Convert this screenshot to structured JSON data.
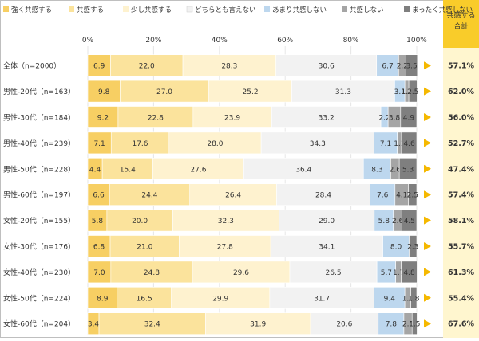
{
  "chart_data": {
    "type": "bar",
    "orientation": "horizontal",
    "stacked": "100%",
    "x_ticks": [
      "0%",
      "20%",
      "40%",
      "60%",
      "80%",
      "100%"
    ],
    "xlim": [
      0,
      100
    ],
    "legend_position": "top",
    "categories": [
      "全体（n=2000）",
      "男性-20代（n=163）",
      "男性-30代（n=184）",
      "男性-40代（n=239）",
      "男性-50代（n=228）",
      "男性-60代（n=197）",
      "女性-20代（n=155）",
      "女性-30代（n=176）",
      "女性-40代（n=230）",
      "女性-50代（n=224）",
      "女性-60代（n=204）"
    ],
    "series": [
      {
        "name": "強く共感する",
        "color": "#f7cf63",
        "values": [
          6.9,
          9.8,
          9.2,
          7.1,
          4.4,
          6.6,
          5.8,
          6.8,
          7.0,
          8.9,
          3.4
        ]
      },
      {
        "name": "共感する",
        "color": "#fbe39c",
        "values": [
          22.0,
          27.0,
          22.8,
          17.6,
          15.4,
          24.4,
          20.0,
          21.0,
          24.8,
          16.5,
          32.4
        ]
      },
      {
        "name": "少し共感する",
        "color": "#fef2cf",
        "values": [
          28.3,
          25.2,
          23.9,
          28.0,
          27.6,
          26.4,
          32.3,
          27.8,
          29.6,
          29.9,
          31.9
        ]
      },
      {
        "name": "どちらとも言えない",
        "color": "#f2f2f2",
        "values": [
          30.6,
          31.3,
          33.2,
          34.3,
          36.4,
          28.4,
          29.0,
          34.1,
          26.5,
          31.7,
          20.6
        ]
      },
      {
        "name": "あまり共感しない",
        "color": "#bdd7ee",
        "values": [
          6.7,
          3.1,
          2.2,
          7.1,
          8.3,
          7.6,
          5.8,
          8.0,
          5.7,
          9.4,
          7.8
        ]
      },
      {
        "name": "共感しない",
        "color": "#a5a5a5",
        "values": [
          2.2,
          1.2,
          3.8,
          1.3,
          2.6,
          4.1,
          2.6,
          0.0,
          1.7,
          1.8,
          2.5
        ]
      },
      {
        "name": "まったく共感しない",
        "color": "#7f7f7f",
        "values": [
          3.5,
          2.5,
          4.9,
          4.6,
          5.3,
          2.5,
          4.5,
          2.3,
          4.8,
          1.8,
          1.5
        ]
      }
    ],
    "labels": [
      [
        "6.9",
        "22.0",
        "28.3",
        "30.6",
        "6.7",
        "2.2",
        "3.5"
      ],
      [
        "9.8",
        "27.0",
        "25.2",
        "31.3",
        "3.1",
        "1.2",
        "2.5"
      ],
      [
        "9.2",
        "22.8",
        "23.9",
        "33.2",
        "2.2",
        "3.8",
        "4.9"
      ],
      [
        "7.1",
        "17.6",
        "28.0",
        "34.3",
        "7.1",
        "1.3",
        "4.6"
      ],
      [
        "4.4",
        "15.4",
        "27.6",
        "36.4",
        "8.3",
        "2.6",
        "5.3"
      ],
      [
        "6.6",
        "24.4",
        "26.4",
        "28.4",
        "7.6",
        "4.1",
        "2.5"
      ],
      [
        "5.8",
        "20.0",
        "32.3",
        "29.0",
        "5.8",
        "2.6",
        "4.5"
      ],
      [
        "6.8",
        "21.0",
        "27.8",
        "34.1",
        "8.0",
        "",
        "2.3"
      ],
      [
        "7.0",
        "24.8",
        "29.6",
        "26.5",
        "5.7",
        "1.7",
        "4.8"
      ],
      [
        "8.9",
        "16.5",
        "29.9",
        "31.7",
        "9.4",
        "1.8",
        "1.8"
      ],
      [
        "3.4",
        "32.4",
        "31.9",
        "20.6",
        "7.8",
        "2.5",
        "1.5"
      ]
    ],
    "total_header": "共感する\n合計",
    "totals": [
      "57.1%",
      "62.0%",
      "56.0%",
      "52.7%",
      "47.4%",
      "57.4%",
      "58.1%",
      "55.7%",
      "61.3%",
      "55.4%",
      "67.6%"
    ],
    "arrow_color": "#f5b800",
    "total_column_color": "#fff6cf",
    "total_header_color": "#f9cc2a"
  }
}
